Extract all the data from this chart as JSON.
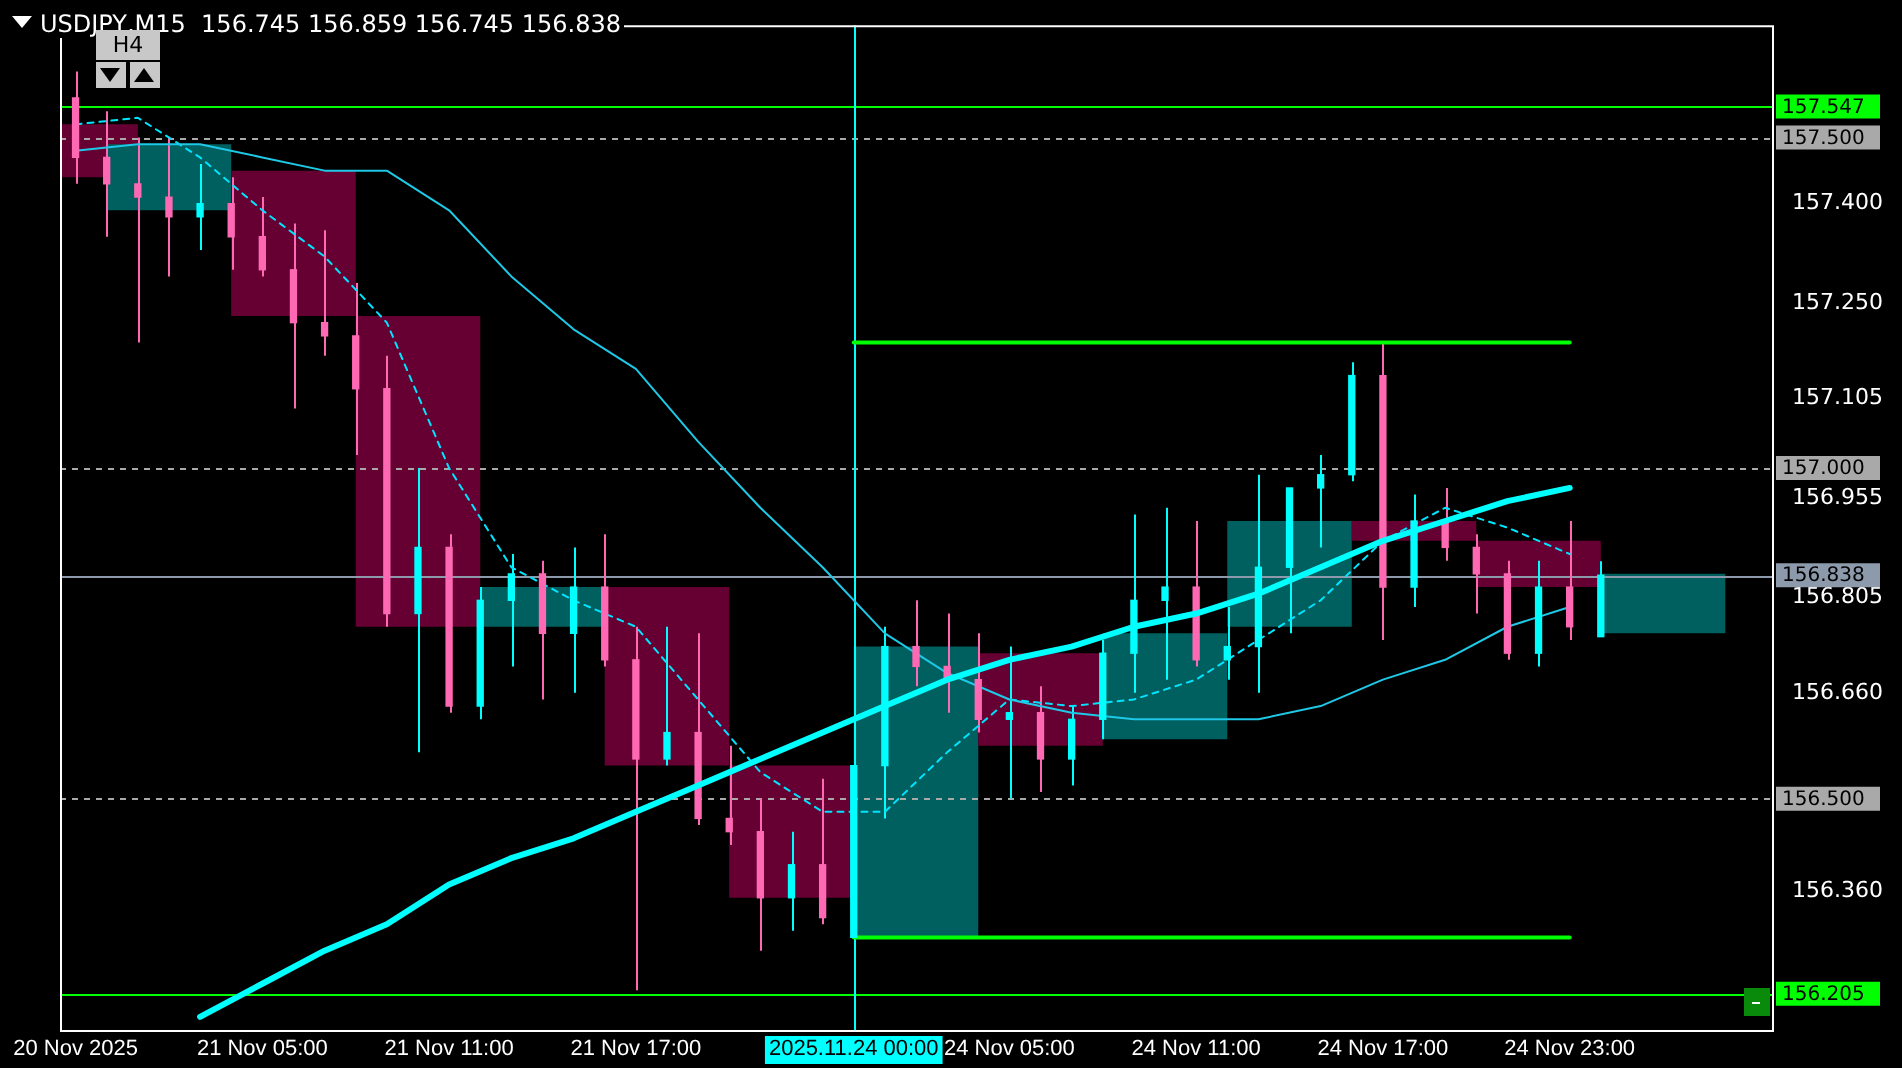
{
  "chart_data": {
    "type": "candlestick",
    "title": "USDJPY,M15  156.745 156.859 156.745 156.838",
    "annotations": [
      "H4"
    ],
    "categories": [
      "20 Nov 2025",
      null,
      null,
      null,
      null,
      null,
      "21 Nov 05:00",
      null,
      null,
      null,
      null,
      null,
      "21 Nov 11:00",
      null,
      null,
      null,
      null,
      null,
      "21 Nov 17:00",
      null,
      null,
      null,
      null,
      null,
      null,
      "2025.11.24 00:00",
      null,
      null,
      null,
      null,
      "24 Nov 05:00",
      null,
      null,
      null,
      null,
      null,
      "24 Nov 11:00",
      null,
      null,
      null,
      null,
      null,
      "24 Nov 17:00",
      null,
      null,
      null,
      null,
      null,
      "24 Nov 23:00",
      null,
      null,
      null,
      null,
      null,
      null
    ],
    "ylim": [
      156.15,
      157.67
    ],
    "yticks": [
      {
        "value": 157.4,
        "label": "157.400"
      },
      {
        "value": 157.25,
        "label": "157.250"
      },
      {
        "value": 157.105,
        "label": "157.105"
      },
      {
        "value": 156.955,
        "label": "156.955"
      },
      {
        "value": 156.805,
        "label": "156.805"
      },
      {
        "value": 156.66,
        "label": "156.660"
      },
      {
        "value": 156.36,
        "label": "156.360"
      }
    ],
    "legend": false,
    "series": [
      {
        "ohlc": [
          [
            157.56,
            157.6,
            157.43,
            157.47
          ],
          [
            157.47,
            157.54,
            157.35,
            157.43
          ],
          [
            157.43,
            157.5,
            157.19,
            157.41
          ],
          [
            157.41,
            157.5,
            157.29,
            157.38
          ],
          [
            157.38,
            157.46,
            157.33,
            157.4
          ],
          [
            157.4,
            157.44,
            157.3,
            157.35
          ],
          [
            157.35,
            157.41,
            157.29,
            157.3
          ],
          [
            157.3,
            157.37,
            157.09,
            157.22
          ],
          [
            157.22,
            157.36,
            157.17,
            157.2
          ],
          [
            157.2,
            157.28,
            157.02,
            157.12
          ],
          [
            157.12,
            157.17,
            156.76,
            156.78
          ],
          [
            156.78,
            157.0,
            156.57,
            156.88
          ],
          [
            156.88,
            156.9,
            156.63,
            156.64
          ],
          [
            156.64,
            156.82,
            156.62,
            156.8
          ],
          [
            156.8,
            156.87,
            156.7,
            156.84
          ],
          [
            156.84,
            156.86,
            156.65,
            156.75
          ],
          [
            156.75,
            156.88,
            156.66,
            156.82
          ],
          [
            156.82,
            156.9,
            156.7,
            156.71
          ],
          [
            156.71,
            156.76,
            156.21,
            156.56
          ],
          [
            156.56,
            156.76,
            156.55,
            156.6
          ],
          [
            156.6,
            156.75,
            156.46,
            156.47
          ],
          [
            156.47,
            156.58,
            156.43,
            156.45
          ],
          [
            156.45,
            156.5,
            156.27,
            156.35
          ],
          [
            156.35,
            156.45,
            156.3,
            156.4
          ],
          [
            156.4,
            156.53,
            156.31,
            156.32
          ],
          [
            156.29,
            156.6,
            156.29,
            156.55
          ],
          [
            156.55,
            156.76,
            156.47,
            156.73
          ],
          [
            156.73,
            156.8,
            156.67,
            156.7
          ],
          [
            156.7,
            156.78,
            156.63,
            156.68
          ],
          [
            156.68,
            156.75,
            156.6,
            156.62
          ],
          [
            156.62,
            156.73,
            156.5,
            156.63
          ],
          [
            156.63,
            156.67,
            156.51,
            156.56
          ],
          [
            156.56,
            156.64,
            156.52,
            156.62
          ],
          [
            156.62,
            156.74,
            156.59,
            156.72
          ],
          [
            156.72,
            156.93,
            156.66,
            156.8
          ],
          [
            156.8,
            156.94,
            156.68,
            156.82
          ],
          [
            156.82,
            156.92,
            156.7,
            156.71
          ],
          [
            156.71,
            156.79,
            156.68,
            156.73
          ],
          [
            156.73,
            156.99,
            156.66,
            156.85
          ],
          [
            156.85,
            156.97,
            156.75,
            156.97
          ],
          [
            156.97,
            157.02,
            156.88,
            156.99
          ],
          [
            156.99,
            157.16,
            156.98,
            157.14
          ],
          [
            157.14,
            157.19,
            156.74,
            156.82
          ],
          [
            156.82,
            156.96,
            156.79,
            156.92
          ],
          [
            156.92,
            156.97,
            156.86,
            156.88
          ],
          [
            156.88,
            156.9,
            156.78,
            156.84
          ],
          [
            156.84,
            156.86,
            156.71,
            156.72
          ],
          [
            156.72,
            156.86,
            156.7,
            156.82
          ],
          [
            156.82,
            156.92,
            156.74,
            156.76
          ],
          [
            156.745,
            156.859,
            156.745,
            156.838
          ],
          null,
          null,
          null,
          null,
          null
        ],
        "colors": [
          "#ff69b4",
          "#ff69b4",
          "#ff69b4",
          "#ff69b4",
          "#00ffff",
          "#ff69b4",
          "#ff69b4",
          "#ff69b4",
          "#ff69b4",
          "#ff69b4",
          "#ff69b4",
          "#00ffff",
          "#ff69b4",
          "#00ffff",
          "#00ffff",
          "#ff69b4",
          "#00ffff",
          "#ff69b4",
          "#ff69b4",
          "#00ffff",
          "#ff69b4",
          "#ff69b4",
          "#ff69b4",
          "#00ffff",
          "#ff69b4",
          "#00ffff",
          "#00ffff",
          "#ff69b4",
          "#ff69b4",
          "#ff69b4",
          "#00ffff",
          "#ff69b4",
          "#00ffff",
          "#00ffff",
          "#00ffff",
          "#00ffff",
          "#ff69b4",
          "#00ffff",
          "#00ffff",
          "#00ffff",
          "#00ffff",
          "#00ffff",
          "#ff69b4",
          "#00ffff",
          "#ff69b4",
          "#ff69b4",
          "#ff69b4",
          "#00ffff",
          "#ff69b4",
          "#00ffff",
          null,
          null,
          null,
          null,
          null
        ]
      },
      {
        "ohlc": [
          [
            157.52,
            157.52,
            157.44,
            157.44
          ],
          null,
          null,
          [
            157.39,
            157.49,
            157.39,
            157.49
          ],
          null,
          null,
          null,
          [
            157.45,
            157.45,
            157.23,
            157.23
          ],
          null,
          null,
          null,
          [
            157.23,
            157.23,
            156.76,
            156.76
          ],
          null,
          null,
          null,
          [
            156.76,
            156.82,
            156.76,
            156.82
          ],
          null,
          null,
          null,
          [
            156.82,
            156.82,
            156.55,
            156.55
          ],
          null,
          null,
          null,
          [
            156.55,
            156.55,
            156.35,
            156.35
          ],
          null,
          null,
          null,
          [
            156.29,
            156.73,
            156.29,
            156.73
          ],
          null,
          null,
          null,
          [
            156.72,
            156.72,
            156.58,
            156.58
          ],
          null,
          null,
          null,
          [
            156.59,
            156.75,
            156.59,
            156.75
          ],
          null,
          null,
          null,
          [
            156.76,
            156.92,
            156.76,
            156.92
          ],
          null,
          null,
          null,
          [
            156.92,
            156.92,
            156.89,
            156.89
          ],
          null,
          null,
          null,
          [
            156.89,
            156.89,
            156.82,
            156.82
          ],
          null,
          null,
          null,
          [
            156.75,
            156.84,
            156.75,
            156.84
          ],
          null,
          null,
          null
        ],
        "colors": [
          "#660033",
          null,
          null,
          "#005f5f",
          null,
          null,
          null,
          "#660033",
          null,
          null,
          null,
          "#660033",
          null,
          null,
          null,
          "#005f5f",
          null,
          null,
          null,
          "#660033",
          null,
          null,
          null,
          "#660033",
          null,
          null,
          null,
          "#005f5f",
          null,
          null,
          null,
          "#660033",
          null,
          null,
          null,
          "#005f5f",
          null,
          null,
          null,
          "#005f5f",
          null,
          null,
          null,
          "#660033",
          null,
          null,
          null,
          "#660033",
          null,
          null,
          null,
          "#005f5f",
          null,
          null,
          null
        ]
      },
      {
        "type": "line",
        "color": "#00ffff",
        "values": [
          null,
          null,
          null,
          null,
          156.17,
          null,
          156.22,
          null,
          156.27,
          null,
          156.31,
          null,
          156.37,
          null,
          156.41,
          null,
          156.44,
          null,
          156.48,
          null,
          156.52,
          null,
          156.56,
          null,
          156.6,
          null,
          156.64,
          null,
          156.68,
          null,
          156.71,
          null,
          156.73,
          null,
          156.76,
          null,
          156.78,
          null,
          156.81,
          null,
          156.85,
          null,
          156.89,
          null,
          156.92,
          null,
          156.95,
          null,
          156.97,
          null,
          null,
          null,
          null,
          null,
          null
        ]
      },
      {
        "type": "line",
        "color": "#1ec8e6",
        "values": [
          157.48,
          null,
          157.49,
          null,
          157.49,
          null,
          157.47,
          null,
          157.45,
          null,
          157.45,
          null,
          157.39,
          null,
          157.29,
          null,
          157.21,
          null,
          157.15,
          null,
          157.04,
          null,
          156.94,
          null,
          156.85,
          null,
          156.75,
          null,
          156.69,
          null,
          156.65,
          null,
          156.63,
          null,
          156.62,
          null,
          156.62,
          null,
          156.62,
          null,
          156.64,
          null,
          156.68,
          null,
          156.71,
          null,
          156.76,
          null,
          156.79,
          null,
          null,
          null,
          null,
          null,
          null
        ]
      },
      {
        "type": "line",
        "color": "#00e5ff",
        "line_style": "dashed",
        "values": [
          157.52,
          null,
          157.53,
          null,
          157.47,
          null,
          157.39,
          null,
          157.32,
          null,
          157.22,
          null,
          157.0,
          null,
          156.85,
          null,
          156.8,
          null,
          156.76,
          null,
          156.65,
          null,
          156.54,
          null,
          156.48,
          null,
          156.48,
          null,
          156.57,
          null,
          156.65,
          null,
          156.64,
          null,
          156.65,
          null,
          156.68,
          null,
          156.74,
          null,
          156.8,
          null,
          156.89,
          null,
          156.94,
          null,
          156.91,
          null,
          156.87,
          null,
          null,
          null,
          null,
          null,
          null
        ]
      },
      {
        "type": "line",
        "color": "#00ff00",
        "values": [
          null,
          null,
          null,
          null,
          null,
          null,
          null,
          null,
          null,
          null,
          null,
          null,
          null,
          null,
          null,
          null,
          null,
          null,
          null,
          null,
          null,
          null,
          null,
          null,
          null,
          157.19,
          157.19,
          157.19,
          157.19,
          157.19,
          157.19,
          157.19,
          157.19,
          157.19,
          157.19,
          157.19,
          157.19,
          157.19,
          157.19,
          157.19,
          157.19,
          157.19,
          157.19,
          157.19,
          157.19,
          157.19,
          157.19,
          157.19,
          157.19,
          null,
          null,
          null,
          null,
          null,
          null
        ]
      },
      {
        "type": "line",
        "color": "#00ff00",
        "values": [
          null,
          null,
          null,
          null,
          null,
          null,
          null,
          null,
          null,
          null,
          null,
          null,
          null,
          null,
          null,
          null,
          null,
          null,
          null,
          null,
          null,
          null,
          null,
          null,
          null,
          156.29,
          156.29,
          156.29,
          156.29,
          156.29,
          156.29,
          156.29,
          156.29,
          156.29,
          156.29,
          156.29,
          156.29,
          156.29,
          156.29,
          156.29,
          156.29,
          156.29,
          156.29,
          156.29,
          156.29,
          156.29,
          156.29,
          156.29,
          156.29,
          null,
          null,
          null,
          null,
          null,
          null
        ]
      }
    ],
    "ref_lines": [
      {
        "axis": "y",
        "value": 157.547,
        "label": "157.547",
        "color": "#00ff00",
        "line_style": "solid"
      },
      {
        "axis": "y",
        "value": 157.5,
        "label": "157.500",
        "color": "#a9a9a9",
        "line_style": "dashed"
      },
      {
        "axis": "y",
        "value": 157.0,
        "label": "157.000",
        "color": "#a9a9a9",
        "line_style": "dashed"
      },
      {
        "axis": "y",
        "value": 156.838,
        "label": "156.838",
        "color": "#8c9aab",
        "line_style": "solid"
      },
      {
        "axis": "y",
        "value": 156.5,
        "label": "156.500",
        "color": "#a9a9a9",
        "line_style": "dashed"
      },
      {
        "axis": "y",
        "value": 156.205,
        "label": "156.205",
        "color": "#00ff00",
        "line_style": "solid"
      },
      {
        "axis": "x",
        "value": "2025.11.24 00:00",
        "color": "#00ffff",
        "line_style": "solid"
      }
    ]
  }
}
